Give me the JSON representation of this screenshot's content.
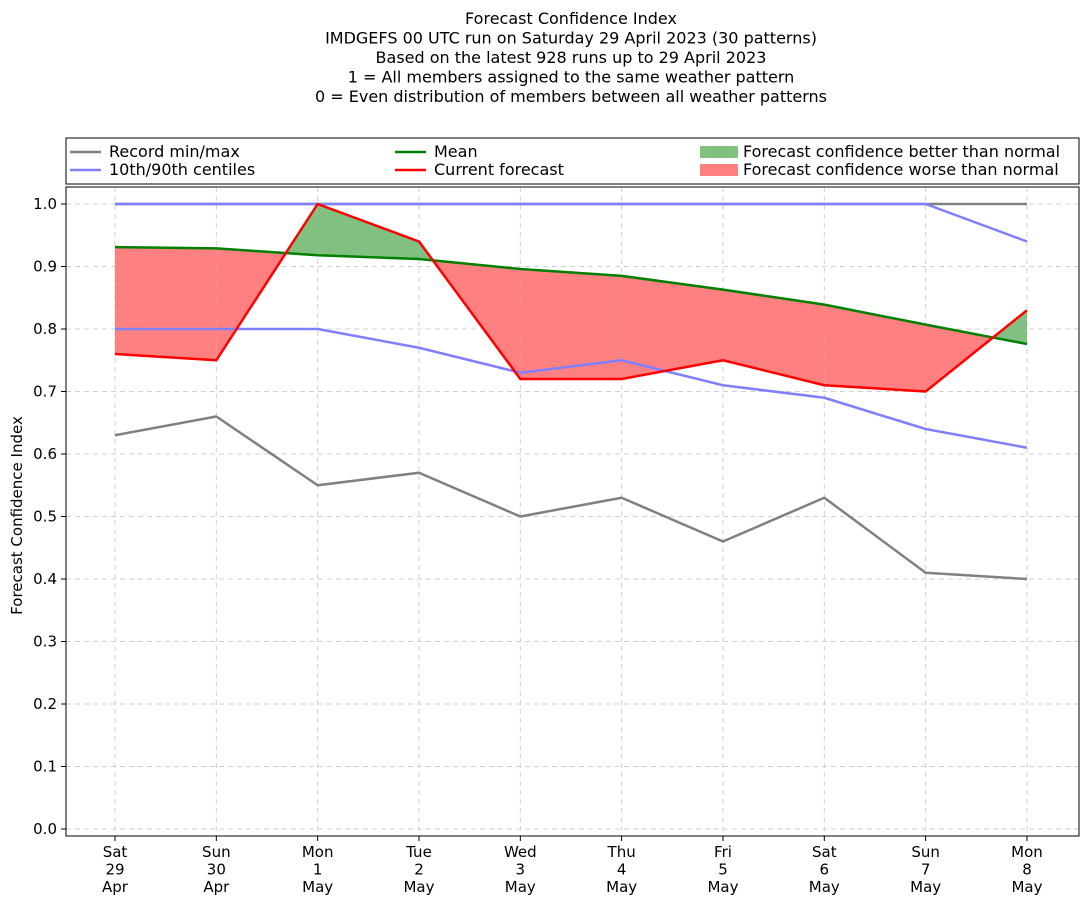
{
  "chart_data": {
    "type": "line",
    "title_lines": [
      "Forecast Confidence Index",
      "IMDGEFS 00 UTC run on Saturday 29 April 2023 (30 patterns)",
      "Based on the latest 928 runs up to 29 April 2023",
      "1 = All members assigned to the same weather pattern",
      "0 = Even distribution of members between all weather patterns"
    ],
    "ylabel": "Forecast Confidence Index",
    "ylim": [
      0.0,
      1.0
    ],
    "yticks": [
      "0.0",
      "0.1",
      "0.2",
      "0.3",
      "0.4",
      "0.5",
      "0.6",
      "0.7",
      "0.8",
      "0.9",
      "1.0"
    ],
    "grid": true,
    "categories": [
      [
        "Sat",
        "29",
        "Apr"
      ],
      [
        "Sun",
        "30",
        "Apr"
      ],
      [
        "Mon",
        "1",
        "May"
      ],
      [
        "Tue",
        "2",
        "May"
      ],
      [
        "Wed",
        "3",
        "May"
      ],
      [
        "Thu",
        "4",
        "May"
      ],
      [
        "Fri",
        "5",
        "May"
      ],
      [
        "Sat",
        "6",
        "May"
      ],
      [
        "Sun",
        "7",
        "May"
      ],
      [
        "Mon",
        "8",
        "May"
      ]
    ],
    "series": {
      "record_min": [
        0.63,
        0.66,
        0.55,
        0.57,
        0.5,
        0.53,
        0.46,
        0.53,
        0.41,
        0.4
      ],
      "record_max": [
        1.0,
        1.0,
        1.0,
        1.0,
        1.0,
        1.0,
        1.0,
        1.0,
        1.0,
        1.0
      ],
      "centile_10": [
        0.8,
        0.8,
        0.8,
        0.77,
        0.73,
        0.75,
        0.71,
        0.69,
        0.64,
        0.61
      ],
      "centile_90": [
        1.0,
        1.0,
        1.0,
        1.0,
        1.0,
        1.0,
        1.0,
        1.0,
        1.0,
        0.94
      ],
      "mean": [
        0.931,
        0.929,
        0.918,
        0.912,
        0.896,
        0.885,
        0.863,
        0.839,
        0.807,
        0.776
      ],
      "current": [
        0.76,
        0.75,
        1.0,
        0.94,
        0.72,
        0.72,
        0.75,
        0.71,
        0.7,
        0.83
      ]
    },
    "colors": {
      "record": "#808080",
      "centile": "#7f7fff",
      "mean": "#008000",
      "current": "#ff0000",
      "better_fill": "#80c080",
      "worse_fill": "#ff8080"
    },
    "legend": {
      "placement": "top",
      "entries": [
        {
          "label": "Record min/max",
          "kind": "line",
          "color": "#808080"
        },
        {
          "label": "10th/90th centiles",
          "kind": "line",
          "color": "#7f7fff"
        },
        {
          "label": "Mean",
          "kind": "line",
          "color": "#008000"
        },
        {
          "label": "Current forecast",
          "kind": "line",
          "color": "#ff0000"
        },
        {
          "label": "Forecast confidence better than normal",
          "kind": "patch",
          "color": "#80c080"
        },
        {
          "label": "Forecast confidence worse than normal",
          "kind": "patch",
          "color": "#ff8080"
        }
      ]
    }
  }
}
